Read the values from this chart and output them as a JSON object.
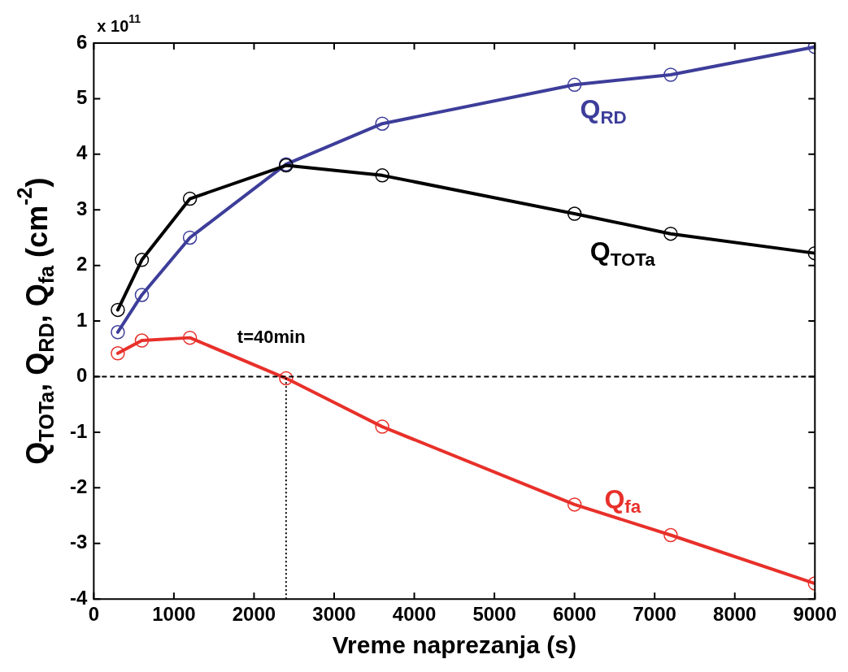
{
  "chart_data": {
    "type": "line",
    "xlabel": "Vreme naprezanja (s)",
    "ylabel": "Q$_{TOTa}$, Q$_{RD}$, Q$_{fa}$ (cm$^{-2}$)",
    "x": [
      300,
      600,
      1200,
      2400,
      3600,
      6000,
      7200,
      9000
    ],
    "series": [
      {
        "name": "Q$_{TOTa}$",
        "color": "#000000",
        "values": [
          1.2,
          2.1,
          3.2,
          3.8,
          3.62,
          2.93,
          2.57,
          2.22
        ]
      },
      {
        "name": "Q$_{RD}$",
        "color": "#3d3d9a",
        "values": [
          0.8,
          1.47,
          2.5,
          3.82,
          4.55,
          5.25,
          5.43,
          5.93
        ]
      },
      {
        "name": "Q$_{fa}$",
        "color": "#e8302a",
        "values": [
          0.42,
          0.65,
          0.7,
          -0.03,
          -0.9,
          -2.3,
          -2.85,
          -3.72
        ]
      }
    ],
    "xlim": [
      0,
      9000
    ],
    "xticks": [
      0,
      1000,
      2000,
      3000,
      4000,
      5000,
      6000,
      7000,
      8000,
      9000
    ],
    "ylim": [
      -4,
      6
    ],
    "yticks": [
      -4,
      -3,
      -2,
      -1,
      0,
      1,
      2,
      3,
      4,
      5,
      6
    ],
    "annotations": [
      "x 10$^{11}$",
      {
        "text": "t=40min",
        "x": 2400,
        "y": 0
      }
    ],
    "ref_lines": [
      {
        "axis": "y",
        "value": 0,
        "line_style": "dashed",
        "color": "#000000"
      },
      {
        "axis": "x",
        "value": 2400,
        "line_style": "dotted",
        "color": "#000000"
      }
    ],
    "marker": "circle",
    "line_style": "solid",
    "grid": false,
    "legend": false
  }
}
